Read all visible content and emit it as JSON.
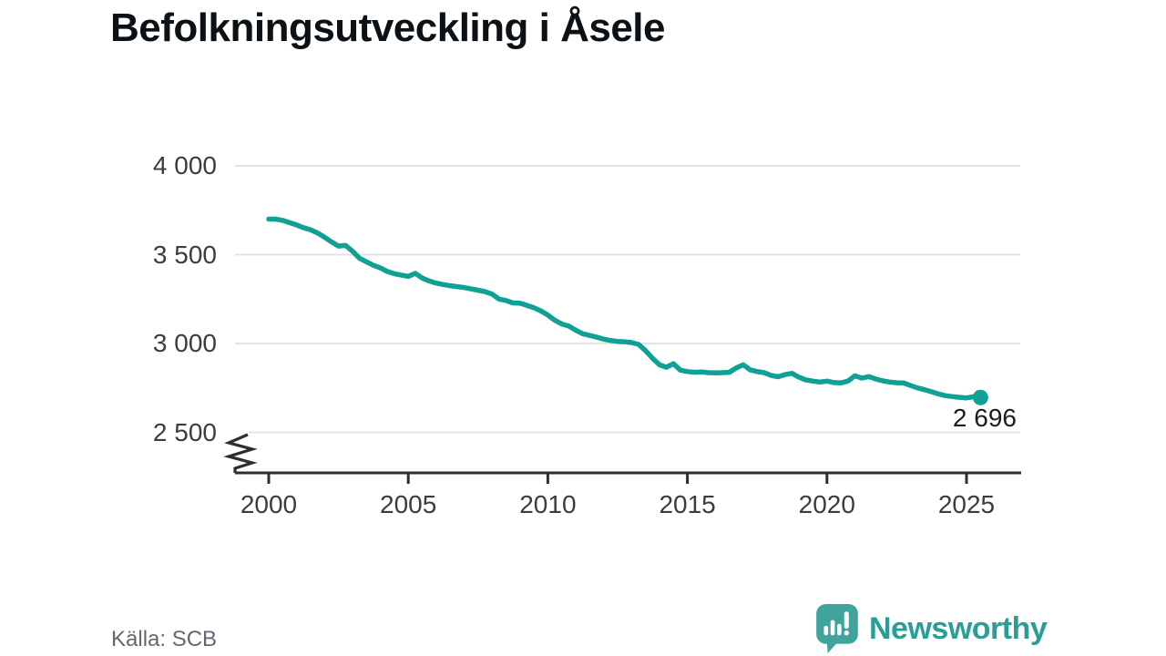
{
  "title": "Befolkningsutveckling i Åsele",
  "source": "Källa: SCB",
  "logo": {
    "name": "Newsworthy"
  },
  "colors": {
    "line": "#11a094",
    "marker": "#11a094",
    "grid": "#e3e3e3",
    "axis": "#2e2e2e",
    "tick_text": "#3c3c3c",
    "title_text": "#0c1116",
    "source_text": "#666670",
    "logo_icon": "#40a49d",
    "logo_text": "#2a9e96"
  },
  "chart_data": {
    "type": "line",
    "title": "Befolkningsutveckling i Åsele",
    "series_name": "Befolkning i Åsele",
    "xlabel": "",
    "ylabel": "",
    "grid": "horizontal",
    "legend": "none",
    "axis_break": true,
    "x_ticks": [
      2000,
      2005,
      2010,
      2015,
      2020,
      2025
    ],
    "y_ticks": [
      4000,
      3500,
      3000,
      2500
    ],
    "y_tick_labels": [
      "4 000",
      "3 500",
      "3 000",
      "2 500"
    ],
    "xlim": [
      1999.3,
      2027
    ],
    "ylim": [
      2500,
      4000
    ],
    "last_point": {
      "x": 2025.5,
      "value": 2696,
      "label": "2 696"
    },
    "x": [
      2000,
      2000.25,
      2000.5,
      2000.75,
      2001,
      2001.25,
      2001.5,
      2001.75,
      2002,
      2002.25,
      2002.5,
      2002.75,
      2003,
      2003.25,
      2003.5,
      2003.75,
      2004,
      2004.25,
      2004.5,
      2004.75,
      2005,
      2005.25,
      2005.5,
      2005.75,
      2006,
      2006.25,
      2006.5,
      2006.75,
      2007,
      2007.25,
      2007.5,
      2007.75,
      2008,
      2008.25,
      2008.5,
      2008.75,
      2009,
      2009.25,
      2009.5,
      2009.75,
      2010,
      2010.25,
      2010.5,
      2010.75,
      2011,
      2011.25,
      2011.5,
      2011.75,
      2012,
      2012.25,
      2012.5,
      2012.75,
      2013,
      2013.25,
      2013.5,
      2013.75,
      2014,
      2014.25,
      2014.5,
      2014.75,
      2015,
      2015.25,
      2015.5,
      2015.75,
      2016,
      2016.25,
      2016.5,
      2016.75,
      2017,
      2017.25,
      2017.5,
      2017.75,
      2018,
      2018.25,
      2018.5,
      2018.75,
      2019,
      2019.25,
      2019.5,
      2019.75,
      2020,
      2020.25,
      2020.5,
      2020.75,
      2021,
      2021.25,
      2021.5,
      2021.75,
      2022,
      2022.25,
      2022.5,
      2022.75,
      2023,
      2023.25,
      2023.5,
      2023.75,
      2024,
      2024.25,
      2024.5,
      2024.75,
      2025,
      2025.25,
      2025.5
    ],
    "values": [
      3700,
      3700,
      3693,
      3680,
      3667,
      3652,
      3640,
      3622,
      3598,
      3572,
      3548,
      3552,
      3520,
      3480,
      3460,
      3440,
      3425,
      3405,
      3393,
      3385,
      3378,
      3395,
      3368,
      3352,
      3340,
      3332,
      3325,
      3320,
      3315,
      3307,
      3300,
      3292,
      3278,
      3250,
      3242,
      3228,
      3227,
      3215,
      3201,
      3183,
      3160,
      3130,
      3110,
      3098,
      3075,
      3055,
      3045,
      3036,
      3024,
      3017,
      3012,
      3010,
      3005,
      2995,
      2960,
      2917,
      2880,
      2866,
      2886,
      2850,
      2842,
      2838,
      2840,
      2836,
      2835,
      2836,
      2838,
      2862,
      2880,
      2852,
      2842,
      2836,
      2820,
      2813,
      2825,
      2832,
      2810,
      2795,
      2788,
      2783,
      2788,
      2780,
      2778,
      2788,
      2818,
      2805,
      2814,
      2800,
      2790,
      2783,
      2779,
      2778,
      2763,
      2750,
      2740,
      2728,
      2716,
      2706,
      2701,
      2697,
      2694,
      2700,
      2696
    ]
  }
}
